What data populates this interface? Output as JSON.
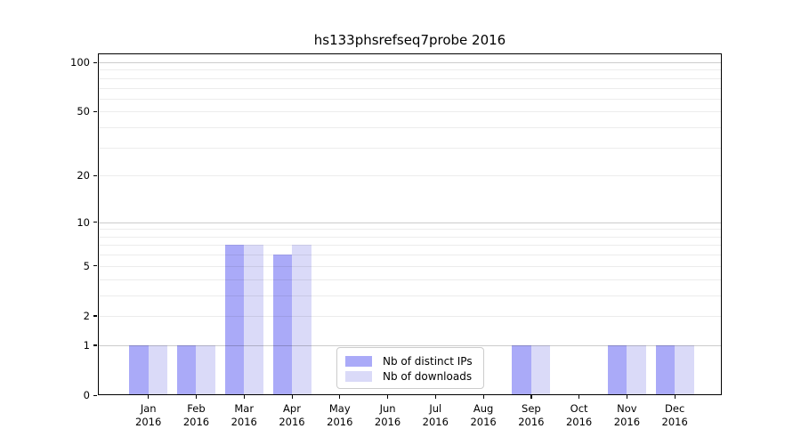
{
  "chart_data": {
    "type": "bar",
    "title": "hs133phsrefseq7probe 2016",
    "categories": [
      "Jan",
      "Feb",
      "Mar",
      "Apr",
      "May",
      "Jun",
      "Jul",
      "Aug",
      "Sep",
      "Oct",
      "Nov",
      "Dec"
    ],
    "x_sublabel": "2016",
    "series": [
      {
        "name": "Nb of distinct IPs",
        "color": "#aaaaf8",
        "values": [
          1,
          1,
          7,
          6,
          0,
          0,
          0,
          0,
          1,
          0,
          1,
          1
        ]
      },
      {
        "name": "Nb of downloads",
        "color": "#dadaf8",
        "values": [
          1,
          1,
          7,
          7,
          0,
          0,
          0,
          0,
          1,
          0,
          1,
          1
        ]
      }
    ],
    "xlabel": "",
    "ylabel": "",
    "y_scale": "log1p",
    "y_ticks": [
      0,
      1,
      2,
      5,
      10,
      20,
      50,
      100
    ],
    "y_major_gridlines": [
      1,
      10,
      100
    ],
    "y_minor_gridlines": [
      2,
      3,
      4,
      5,
      6,
      7,
      8,
      9,
      20,
      30,
      40,
      50,
      60,
      70,
      80,
      90
    ],
    "ylim": [
      0,
      113
    ],
    "grid": true,
    "legend_position": "lower center",
    "colors": {
      "bar_distinct_ips": "#aaaaf8",
      "bar_downloads": "#dadaf8",
      "grid_major": "#cccccc",
      "grid_minor": "#ececec",
      "axis": "#000000"
    }
  }
}
